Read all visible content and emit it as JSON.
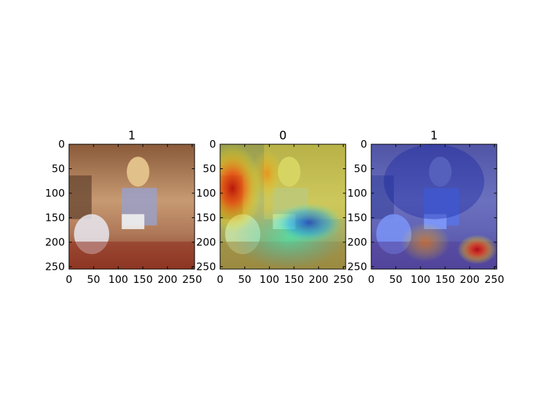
{
  "chart_data": [
    {
      "type": "heatmap",
      "title": "1",
      "content": "original image",
      "xlim": [
        0,
        255
      ],
      "ylim": [
        255,
        0
      ],
      "xticks": [
        "0",
        "50",
        "100",
        "150",
        "200",
        "250"
      ],
      "yticks": [
        "0",
        "50",
        "100",
        "150",
        "200",
        "250"
      ],
      "overlay": null
    },
    {
      "type": "heatmap",
      "title": "0",
      "content": "class activation map overlay",
      "xlim": [
        0,
        255
      ],
      "ylim": [
        255,
        0
      ],
      "xticks": [
        "0",
        "50",
        "100",
        "150",
        "200",
        "250"
      ],
      "yticks": [
        "0",
        "50",
        "100",
        "150",
        "200",
        "250"
      ],
      "overlay": {
        "colormap": "jet",
        "background": "yellow-green",
        "hotspots": [
          {
            "x": 25,
            "y": 90,
            "rx": 60,
            "ry": 90,
            "intensity": "high"
          },
          {
            "x": 95,
            "y": 60,
            "rx": 30,
            "ry": 50,
            "intensity": "medium"
          },
          {
            "x": 180,
            "y": 160,
            "rx": 70,
            "ry": 40,
            "intensity": "low"
          }
        ]
      }
    },
    {
      "type": "heatmap",
      "title": "1",
      "content": "class activation map overlay",
      "xlim": [
        0,
        255
      ],
      "ylim": [
        255,
        0
      ],
      "xticks": [
        "0",
        "50",
        "100",
        "150",
        "200",
        "250"
      ],
      "yticks": [
        "0",
        "50",
        "100",
        "150",
        "200",
        "250"
      ],
      "overlay": {
        "colormap": "jet",
        "background": "blue",
        "hotspots": [
          {
            "x": 215,
            "y": 215,
            "rx": 40,
            "ry": 30,
            "intensity": "high"
          },
          {
            "x": 110,
            "y": 200,
            "rx": 50,
            "ry": 40,
            "intensity": "medium"
          }
        ]
      }
    }
  ]
}
